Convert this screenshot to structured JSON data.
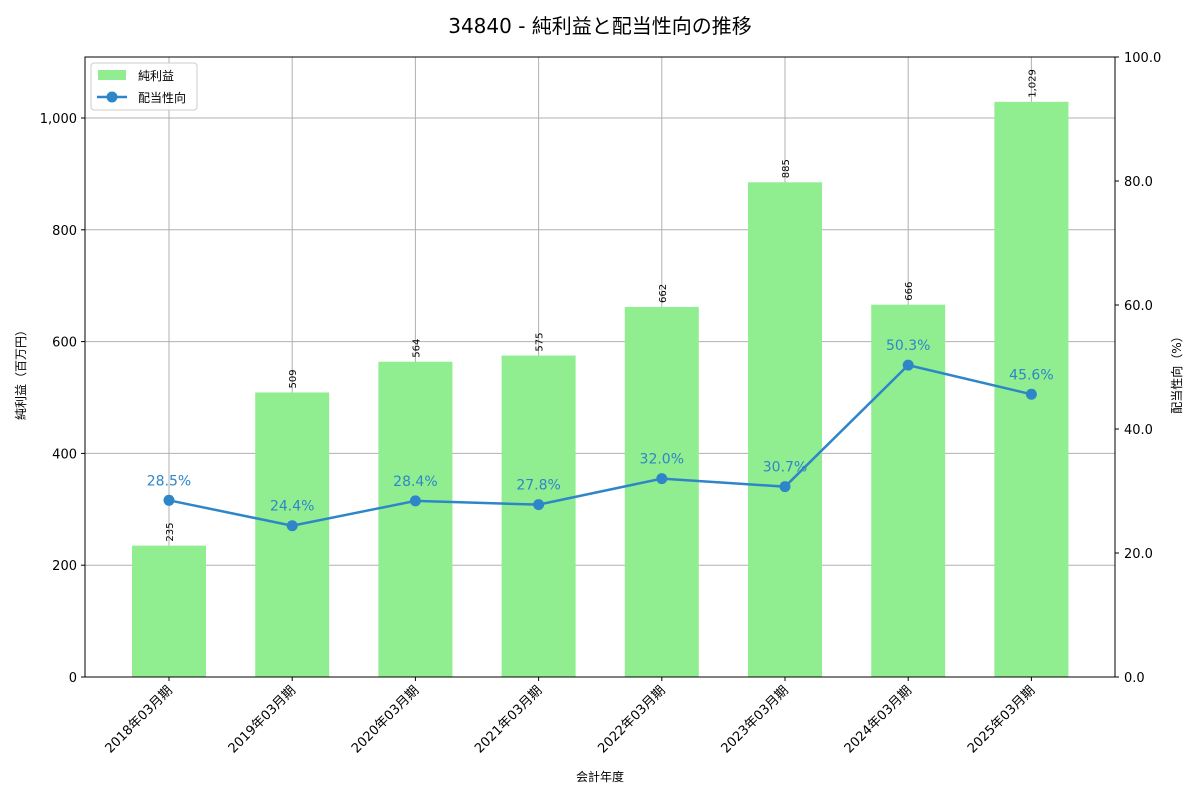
{
  "chart_data": {
    "type": "bar+line",
    "title": "34840 - 純利益と配当性向の推移",
    "xlabel": "会計年度",
    "ylabel_left": "純利益（百万円）",
    "ylabel_right": "配当性向（%）",
    "categories": [
      "2018年03月期",
      "2019年03月期",
      "2020年03月期",
      "2021年03月期",
      "2022年03月期",
      "2023年03月期",
      "2024年03月期",
      "2025年03月期"
    ],
    "series": [
      {
        "name": "純利益",
        "type": "bar",
        "axis": "left",
        "color": "#90ee90",
        "values": [
          235,
          509,
          564,
          575,
          662,
          885,
          666,
          1029
        ],
        "labels": [
          "235",
          "509",
          "564",
          "575",
          "662",
          "885",
          "666",
          "1,029"
        ]
      },
      {
        "name": "配当性向",
        "type": "line",
        "axis": "right",
        "color": "#2e86c8",
        "values": [
          28.5,
          24.4,
          28.4,
          27.8,
          32.0,
          30.7,
          50.3,
          45.6
        ],
        "labels": [
          "28.5%",
          "24.4%",
          "28.4%",
          "27.8%",
          "32.0%",
          "30.7%",
          "50.3%",
          "45.6%"
        ]
      }
    ],
    "ylim_left": [
      0,
      1109
    ],
    "yticks_left": [
      "0",
      "200",
      "400",
      "600",
      "800",
      "1,000"
    ],
    "ylim_right": [
      0,
      100
    ],
    "yticks_right": [
      "0.0",
      "20.0",
      "40.0",
      "60.0",
      "80.0",
      "100.0"
    ],
    "grid": true,
    "legend_position": "upper left"
  }
}
